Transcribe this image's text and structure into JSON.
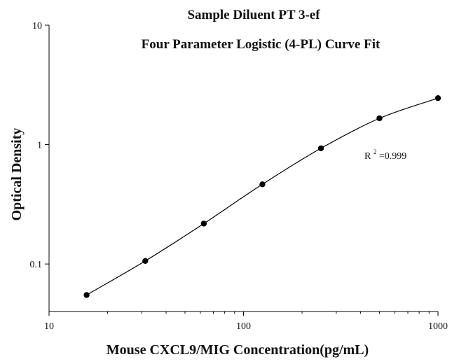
{
  "chart_data": {
    "type": "scatter",
    "title": "Sample Diluent PT 3-ef",
    "subtitle": "Four Parameter Logistic (4-PL) Curve Fit",
    "xlabel": "Mouse CXCL9/MIG Concentration(pg/mL)",
    "ylabel": "Optical Density",
    "xscale": "log",
    "yscale": "log",
    "xlim": [
      10,
      1000
    ],
    "ylim": [
      0.04,
      10
    ],
    "xticks": [
      10,
      100,
      1000
    ],
    "xtick_labels": [
      "10",
      "100",
      "1000"
    ],
    "yticks": [
      0.1,
      1,
      10
    ],
    "ytick_labels": [
      "0.1",
      "1",
      "10"
    ],
    "grid": false,
    "series": [
      {
        "points": [
          {
            "x": 15.6,
            "y": 0.055
          },
          {
            "x": 31.25,
            "y": 0.106
          },
          {
            "x": 62.5,
            "y": 0.218
          },
          {
            "x": 125,
            "y": 0.465
          },
          {
            "x": 250,
            "y": 0.93
          },
          {
            "x": 500,
            "y": 1.66
          },
          {
            "x": 1000,
            "y": 2.45
          }
        ]
      }
    ],
    "annotation": {
      "prefix": "R",
      "superscript": "2",
      "value": "=0.999"
    },
    "colors": {
      "points": "#000000",
      "curve": "#000000",
      "axis": "#000000"
    }
  }
}
